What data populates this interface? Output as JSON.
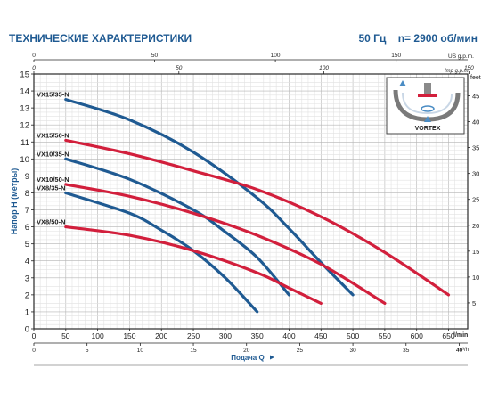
{
  "header": {
    "title": "ТЕХНИЧЕСКИЕ ХАРАКТЕРИСТИКИ",
    "frequency": "50 Гц",
    "speed": "n= 2900 об/мин"
  },
  "inset_label": "VORTEX",
  "chart_data": {
    "type": "line",
    "ylabel": "Напор H (метры)",
    "ylabel_right": "feet",
    "xlabel": "Подача Q",
    "xunit_lmin": "l/min",
    "xunit_m3h": "m³/h",
    "xunit_usgpm": "US g.p.m.",
    "xunit_impgpm": "Imp g.p.m.",
    "xlim": [
      0,
      680
    ],
    "ylim": [
      0,
      15
    ],
    "grid": true,
    "y_ticks": [
      "0",
      "1",
      "2",
      "3",
      "4",
      "5",
      "6",
      "7",
      "8",
      "9",
      "10",
      "11",
      "12",
      "13",
      "14",
      "15"
    ],
    "y_ticks_feet": [
      "5",
      "10",
      "15",
      "20",
      "25",
      "30",
      "35",
      "40",
      "45"
    ],
    "x_ticks_lmin": [
      "0",
      "50",
      "100",
      "150",
      "200",
      "250",
      "300",
      "350",
      "400",
      "450",
      "500",
      "550",
      "600",
      "650"
    ],
    "x_ticks_m3h": [
      "0",
      "5",
      "10",
      "15",
      "20",
      "25",
      "30",
      "35",
      "40"
    ],
    "x_ticks_usgpm": [
      "0",
      "50",
      "100",
      "150"
    ],
    "x_ticks_impgpm": [
      "0",
      "50",
      "100",
      "150"
    ],
    "series": [
      {
        "name": "VX15/35-N",
        "color": "#1f5a92",
        "x": [
          50,
          150,
          250,
          350,
          400,
          450,
          500
        ],
        "y": [
          13.5,
          12.3,
          10.4,
          7.7,
          5.9,
          3.9,
          2.0
        ]
      },
      {
        "name": "VX15/50-N",
        "color": "#d21f3c",
        "x": [
          50,
          150,
          250,
          350,
          450,
          550,
          650
        ],
        "y": [
          11.1,
          10.3,
          9.3,
          8.2,
          6.6,
          4.5,
          2.0
        ]
      },
      {
        "name": "VX10/35-N",
        "color": "#1f5a92",
        "x": [
          50,
          150,
          250,
          300,
          350,
          400
        ],
        "y": [
          10.0,
          8.8,
          7.0,
          5.7,
          4.2,
          2.0
        ]
      },
      {
        "name": "VX10/50-N",
        "color": "#d21f3c",
        "x": [
          50,
          150,
          250,
          350,
          450,
          550
        ],
        "y": [
          8.5,
          7.8,
          6.8,
          5.5,
          3.8,
          1.5
        ]
      },
      {
        "name": "VX8/35-N",
        "color": "#1f5a92",
        "x": [
          50,
          150,
          200,
          250,
          300,
          350
        ],
        "y": [
          8.0,
          6.8,
          5.8,
          4.6,
          3.0,
          1.0
        ]
      },
      {
        "name": "VX8/50-N",
        "color": "#d21f3c",
        "x": [
          50,
          150,
          250,
          350,
          400,
          450
        ],
        "y": [
          6.0,
          5.5,
          4.6,
          3.3,
          2.4,
          1.5
        ]
      }
    ]
  }
}
